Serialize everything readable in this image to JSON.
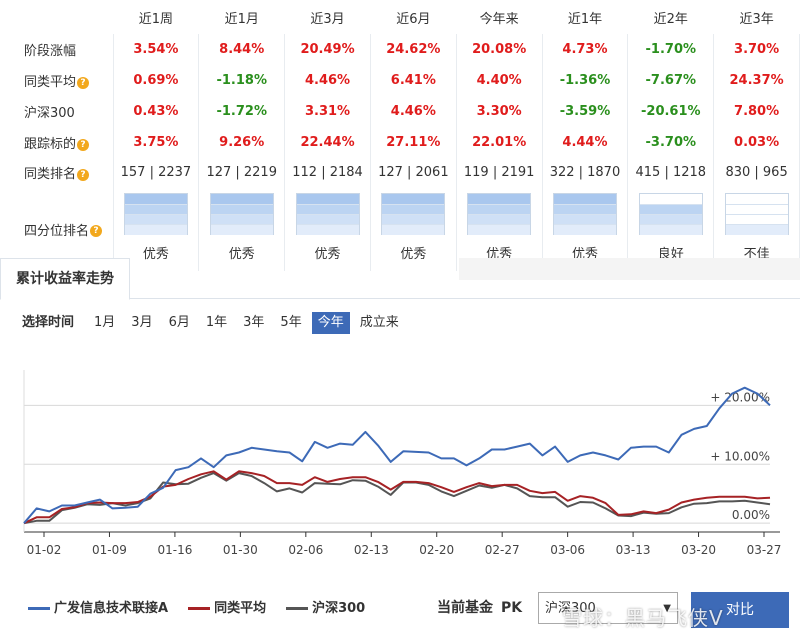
{
  "periods": [
    "近1周",
    "近1月",
    "近3月",
    "近6月",
    "今年来",
    "近1年",
    "近2年",
    "近3年"
  ],
  "rows": [
    {
      "label": "阶段涨幅",
      "help": false,
      "values": [
        "3.54%",
        "8.44%",
        "20.49%",
        "24.62%",
        "20.08%",
        "4.73%",
        "-1.70%",
        "3.70%"
      ],
      "signs": [
        "up",
        "up",
        "up",
        "up",
        "up",
        "up",
        "down",
        "up"
      ]
    },
    {
      "label": "同类平均",
      "help": true,
      "values": [
        "0.69%",
        "-1.18%",
        "4.46%",
        "6.41%",
        "4.40%",
        "-1.36%",
        "-7.67%",
        "24.37%"
      ],
      "signs": [
        "up",
        "down",
        "up",
        "up",
        "up",
        "down",
        "down",
        "up"
      ]
    },
    {
      "label": "沪深300",
      "help": false,
      "values": [
        "0.43%",
        "-1.72%",
        "3.31%",
        "4.46%",
        "3.30%",
        "-3.59%",
        "-20.61%",
        "7.80%"
      ],
      "signs": [
        "up",
        "down",
        "up",
        "up",
        "up",
        "down",
        "down",
        "up"
      ]
    },
    {
      "label": "跟踪标的",
      "help": true,
      "values": [
        "3.75%",
        "9.26%",
        "22.44%",
        "27.11%",
        "22.01%",
        "4.44%",
        "-3.70%",
        "0.03%"
      ],
      "signs": [
        "up",
        "up",
        "up",
        "up",
        "up",
        "up",
        "down",
        "up"
      ]
    }
  ],
  "rank": {
    "label": "同类排名",
    "help": true,
    "values": [
      "157 | 2237",
      "127 | 2219",
      "112 | 2184",
      "127 | 2061",
      "119 | 2191",
      "322 | 1870",
      "415 | 1218",
      "830 | 965"
    ]
  },
  "quartile": {
    "label": "四分位排名",
    "help": true,
    "levels": [
      4,
      4,
      4,
      4,
      4,
      4,
      3,
      1
    ],
    "texts": [
      "优秀",
      "优秀",
      "优秀",
      "优秀",
      "优秀",
      "优秀",
      "良好",
      "不佳"
    ]
  },
  "help_glyph": "?",
  "tab": {
    "label": "累计收益率走势"
  },
  "timebar": {
    "label": "选择时间",
    "options": [
      "1月",
      "3月",
      "6月",
      "1年",
      "3年",
      "5年",
      "今年",
      "成立来"
    ],
    "active": "今年"
  },
  "chart_data": {
    "type": "line",
    "x_ticks": [
      "01-02",
      "01-09",
      "01-16",
      "01-30",
      "02-06",
      "02-13",
      "02-20",
      "02-27",
      "03-06",
      "03-13",
      "03-20",
      "03-27"
    ],
    "y_ticks": [
      "0.00%",
      "+ 10.00%",
      "+ 20.00%"
    ],
    "ylim": [
      -1.5,
      26
    ],
    "series": [
      {
        "name": "广发信息技术联接A",
        "color": "#3d6ab7",
        "values": [
          0,
          2.5,
          2,
          3,
          3,
          3.5,
          4,
          2.5,
          2.6,
          2.8,
          5,
          6,
          9,
          9.5,
          11,
          9.5,
          11.5,
          12,
          12.8,
          12.5,
          12.2,
          12,
          10.5,
          13.8,
          12.8,
          13.5,
          13.3,
          15.5,
          13.2,
          10.4,
          12.2,
          12.1,
          12,
          11,
          11,
          9.8,
          11,
          12.5,
          12.5,
          13,
          13.5,
          11.5,
          13,
          10.4,
          11.5,
          12,
          11.5,
          10.8,
          12.8,
          13,
          13,
          12,
          15,
          16,
          16.5,
          19.5,
          22,
          23,
          22,
          20
        ]
      },
      {
        "name": "同类平均",
        "color": "#a62225",
        "values": [
          0,
          1,
          1,
          2.4,
          2.7,
          3.4,
          3.5,
          3.4,
          3.4,
          3.6,
          4.5,
          6.2,
          6.5,
          7.5,
          8.3,
          8.8,
          7.4,
          8.8,
          8.5,
          8,
          6.8,
          6.8,
          6.5,
          7.8,
          7,
          7.5,
          7.8,
          7.8,
          7,
          5.7,
          7,
          7,
          6.8,
          6.1,
          5.3,
          6.1,
          6.8,
          6.3,
          6.5,
          6.5,
          5.5,
          5.1,
          5.3,
          3.8,
          4.6,
          4.3,
          3.4,
          1.4,
          1.5,
          2,
          1.7,
          2.3,
          3.5,
          4,
          4.3,
          4.5,
          4.5,
          4.5,
          4.2,
          4.3
        ]
      },
      {
        "name": "沪深300",
        "color": "#555555",
        "values": [
          0,
          0.4,
          0.4,
          2.2,
          2.6,
          3.2,
          3.1,
          3.4,
          3,
          3.4,
          4.2,
          6.9,
          6.6,
          6.7,
          7.7,
          8.5,
          7.2,
          8.5,
          8,
          6.8,
          5.4,
          5.9,
          5.2,
          6.8,
          6.7,
          6.6,
          7.3,
          7.2,
          6.2,
          4.8,
          6.9,
          6.9,
          6.5,
          5.4,
          4.6,
          5.5,
          6.4,
          6,
          6.5,
          5.9,
          4.6,
          4.4,
          4.4,
          2.8,
          3.6,
          3.5,
          2.5,
          1.3,
          1.2,
          1.8,
          1.6,
          1.7,
          2.7,
          3.3,
          3.4,
          3.7,
          3.7,
          3.8,
          3.5,
          3.2
        ]
      }
    ]
  },
  "pk": {
    "label": "当前基金",
    "pk_word": "PK",
    "selected": "沪深300",
    "button": "对比"
  },
  "watermark": "雪球：黑马飞侠V"
}
